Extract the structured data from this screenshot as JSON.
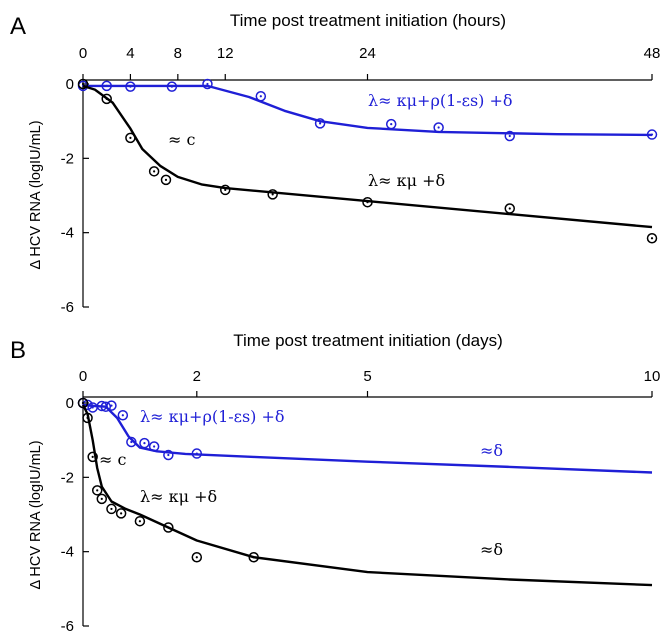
{
  "chart_data": [
    {
      "type": "line",
      "panel_label": "A",
      "xlabel": "Time post treatment initiation (hours)",
      "ylabel": "Δ HCV RNA (logIU/mL)",
      "xlim": [
        0,
        48
      ],
      "ylim": [
        -6,
        0
      ],
      "x_ticks": [
        0,
        4,
        8,
        12,
        24,
        48
      ],
      "y_ticks": [
        0,
        -2,
        -4,
        -6
      ],
      "series": [
        {
          "color": "#1f1fd6",
          "curve": [
            [
              0,
              -0.05
            ],
            [
              10.5,
              -0.05
            ],
            [
              14,
              -0.35
            ],
            [
              17,
              -0.72
            ],
            [
              20,
              -1.0
            ],
            [
              24,
              -1.18
            ],
            [
              30,
              -1.29
            ],
            [
              40,
              -1.35
            ],
            [
              48,
              -1.37
            ]
          ],
          "points": [
            [
              0,
              -0.05
            ],
            [
              2,
              -0.05
            ],
            [
              4,
              -0.07
            ],
            [
              7.5,
              -0.07
            ],
            [
              10.5,
              0.0
            ],
            [
              15,
              -0.33
            ],
            [
              20,
              -1.06
            ],
            [
              26,
              -1.08
            ],
            [
              30,
              -1.17
            ],
            [
              36,
              -1.4
            ],
            [
              48,
              -1.36
            ]
          ],
          "annotation": "λ≈ κμ+ρ(1-εs) +δ"
        },
        {
          "color": "#000000",
          "curve": [
            [
              0,
              -0.05
            ],
            [
              1,
              -0.15
            ],
            [
              2.5,
              -0.5
            ],
            [
              4,
              -1.2
            ],
            [
              5,
              -1.75
            ],
            [
              6.5,
              -2.2
            ],
            [
              8,
              -2.5
            ],
            [
              10,
              -2.7
            ],
            [
              12,
              -2.8
            ],
            [
              24,
              -3.15
            ],
            [
              36,
              -3.5
            ],
            [
              48,
              -3.85
            ]
          ],
          "points": [
            [
              0,
              0.0
            ],
            [
              2,
              -0.4
            ],
            [
              4,
              -1.45
            ],
            [
              6,
              -2.35
            ],
            [
              7,
              -2.58
            ],
            [
              12,
              -2.85
            ],
            [
              16,
              -2.97
            ],
            [
              24,
              -3.18
            ],
            [
              36,
              -3.35
            ],
            [
              48,
              -4.15
            ]
          ],
          "annotation": "λ≈ κμ +δ",
          "annotation2": "≈ c"
        }
      ]
    },
    {
      "type": "line",
      "panel_label": "B",
      "xlabel": "Time post treatment initiation (days)",
      "ylabel": "Δ HCV RNA (logIU/mL)",
      "xlim": [
        0,
        10
      ],
      "ylim": [
        -6,
        0
      ],
      "x_ticks": [
        0,
        2,
        5,
        10
      ],
      "y_ticks": [
        0,
        -2,
        -4,
        -6
      ],
      "series": [
        {
          "color": "#1f1fd6",
          "curve": [
            [
              0,
              -0.05
            ],
            [
              0.2,
              -0.08
            ],
            [
              0.4,
              -0.1
            ],
            [
              0.6,
              -0.4
            ],
            [
              0.8,
              -0.9
            ],
            [
              1,
              -1.2
            ],
            [
              1.3,
              -1.3
            ],
            [
              1.8,
              -1.37
            ],
            [
              3,
              -1.45
            ],
            [
              5,
              -1.58
            ],
            [
              7.5,
              -1.72
            ],
            [
              10,
              -1.87
            ]
          ],
          "points": [
            [
              0,
              0.0
            ],
            [
              0.08,
              -0.05
            ],
            [
              0.17,
              -0.12
            ],
            [
              0.33,
              -0.08
            ],
            [
              0.5,
              -0.07
            ],
            [
              0.4,
              -0.1
            ],
            [
              0.7,
              -0.33
            ],
            [
              0.85,
              -1.05
            ],
            [
              1.08,
              -1.08
            ],
            [
              1.25,
              -1.17
            ],
            [
              1.5,
              -1.4
            ],
            [
              2,
              -1.36
            ]
          ],
          "annotation": "λ≈ κμ+ρ(1-εs) +δ",
          "annotation2": "≈δ"
        },
        {
          "color": "#000000",
          "curve": [
            [
              0,
              -0.05
            ],
            [
              0.08,
              -0.3
            ],
            [
              0.17,
              -1.0
            ],
            [
              0.25,
              -1.75
            ],
            [
              0.33,
              -2.25
            ],
            [
              0.5,
              -2.65
            ],
            [
              0.75,
              -2.85
            ],
            [
              1,
              -3.0
            ],
            [
              1.5,
              -3.35
            ],
            [
              2,
              -3.7
            ],
            [
              3,
              -4.15
            ],
            [
              5,
              -4.55
            ],
            [
              7.5,
              -4.75
            ],
            [
              10,
              -4.9
            ]
          ],
          "points": [
            [
              0,
              0.0
            ],
            [
              0.08,
              -0.4
            ],
            [
              0.17,
              -1.45
            ],
            [
              0.25,
              -2.35
            ],
            [
              0.33,
              -2.58
            ],
            [
              0.5,
              -2.85
            ],
            [
              0.67,
              -2.97
            ],
            [
              1,
              -3.18
            ],
            [
              1.5,
              -3.35
            ],
            [
              2,
              -4.15
            ],
            [
              3,
              -4.15
            ]
          ],
          "annotation": "λ≈ κμ +δ",
          "annotation2": "≈ c",
          "annotation3": "≈δ"
        }
      ]
    }
  ]
}
